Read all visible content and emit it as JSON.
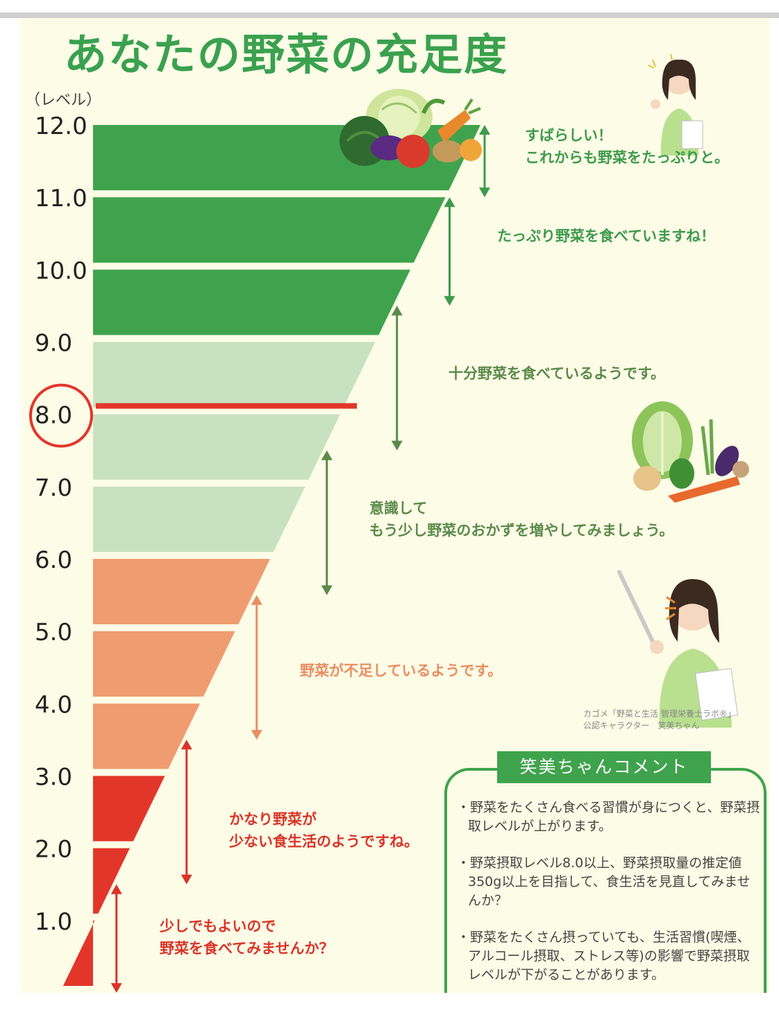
{
  "chart_data": {
    "type": "bar",
    "title": "あなたの野菜の充足度",
    "ylabel": "（レベル）",
    "ylim": [
      0,
      12
    ],
    "ticks": [
      "12.0",
      "11.0",
      "10.0",
      "9.0",
      "8.0",
      "7.0",
      "6.0",
      "5.0",
      "4.0",
      "3.0",
      "2.0",
      "1.0"
    ],
    "tick_values": [
      12,
      11,
      10,
      9,
      8,
      7,
      6,
      5,
      4,
      3,
      2,
      1
    ],
    "bands": [
      {
        "from": 11,
        "to": 12,
        "color": "#3fa34d"
      },
      {
        "from": 10,
        "to": 11,
        "color": "#3fa34d"
      },
      {
        "from": 9,
        "to": 10,
        "color": "#3fa34d"
      },
      {
        "from": 8,
        "to": 9,
        "color": "#c8e2bf"
      },
      {
        "from": 7,
        "to": 8,
        "color": "#c8e2bf"
      },
      {
        "from": 6,
        "to": 7,
        "color": "#c8e2bf"
      },
      {
        "from": 5,
        "to": 6,
        "color": "#ef9c70"
      },
      {
        "from": 4,
        "to": 5,
        "color": "#ef9c70"
      },
      {
        "from": 3,
        "to": 4,
        "color": "#ef9c70"
      },
      {
        "from": 2,
        "to": 3,
        "color": "#e3362b"
      },
      {
        "from": 1,
        "to": 2,
        "color": "#e3362b"
      },
      {
        "from": 0,
        "to": 1,
        "color": "#e3362b"
      }
    ],
    "marker": {
      "value": 8.0,
      "label": "8.0",
      "color": "#e3362b"
    },
    "ranges": [
      {
        "from": 11.0,
        "to": 12.0,
        "color": "#3d9a4c",
        "text": [
          "すばらしい！",
          "これからも野菜をたっぷりと。"
        ]
      },
      {
        "from": 9.5,
        "to": 11.0,
        "color": "#3d9a4c",
        "text": [
          "たっぷり野菜を食べていますね！"
        ]
      },
      {
        "from": 7.5,
        "to": 9.5,
        "color": "#5a8a4a",
        "text": [
          "十分野菜を食べているようです。"
        ]
      },
      {
        "from": 5.5,
        "to": 7.5,
        "color": "#5a8a4a",
        "text": [
          "意識して",
          "もう少し野菜のおかずを増やしてみましょう。"
        ]
      },
      {
        "from": 3.5,
        "to": 5.5,
        "color": "#e88e63",
        "text": [
          "野菜が不足しているようです。"
        ]
      },
      {
        "from": 1.5,
        "to": 3.5,
        "color": "#d9342a",
        "text": [
          "かなり野菜が",
          "少ない食生活のようですね。"
        ]
      },
      {
        "from": 0.0,
        "to": 1.5,
        "color": "#d9342a",
        "text": [
          "少しでもよいので",
          "野菜を食べてみませんか？"
        ]
      }
    ]
  },
  "credit": [
    "カゴメ「野菜と生活 管理栄養士ラボ®」",
    "公認キャラクター　笑美ちゃん"
  ],
  "comment": {
    "title": "笑美ちゃんコメント",
    "items": [
      "・野菜をたくさん食べる習慣が身につくと、野菜摂取レベルが上がります。",
      "・野菜摂取レベル8.0以上、野菜摂取量の推定値350g以上を目指して、食生活を見直してみませんか？",
      "・野菜をたくさん摂っていても、生活習慣(喫煙、アルコール摂取、ストレス等)の影響で野菜摂取レベルが下がることがあります。"
    ]
  },
  "icons": {
    "veg_top": "vegetable-basket-icon",
    "veg_mid": "vegetable-pile-icon",
    "person_small": "mascot-thumbs-icon",
    "person_large": "mascot-pointer-icon"
  }
}
